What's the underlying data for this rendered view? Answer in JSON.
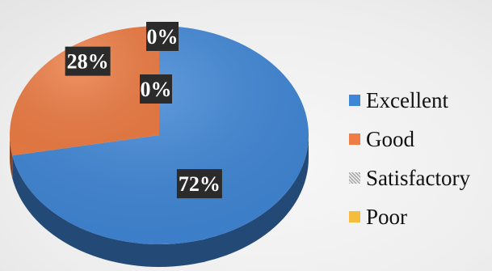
{
  "chart_data": {
    "type": "pie",
    "categories": [
      "Excellent",
      "Good",
      "Satisfactory",
      "Poor"
    ],
    "values": [
      72,
      28,
      0,
      0
    ],
    "data_labels": [
      "72%",
      "28%",
      "0%",
      "0%"
    ],
    "colors": {
      "Excellent": "#3f86d6",
      "Good": "#ee7d45",
      "Satisfactory": "#a9a9a9",
      "Poor": "#f4bd3c"
    },
    "legend": {
      "position": "right",
      "entries": [
        "Excellent",
        "Good",
        "Satisfactory",
        "Poor"
      ]
    },
    "style": "3d"
  }
}
